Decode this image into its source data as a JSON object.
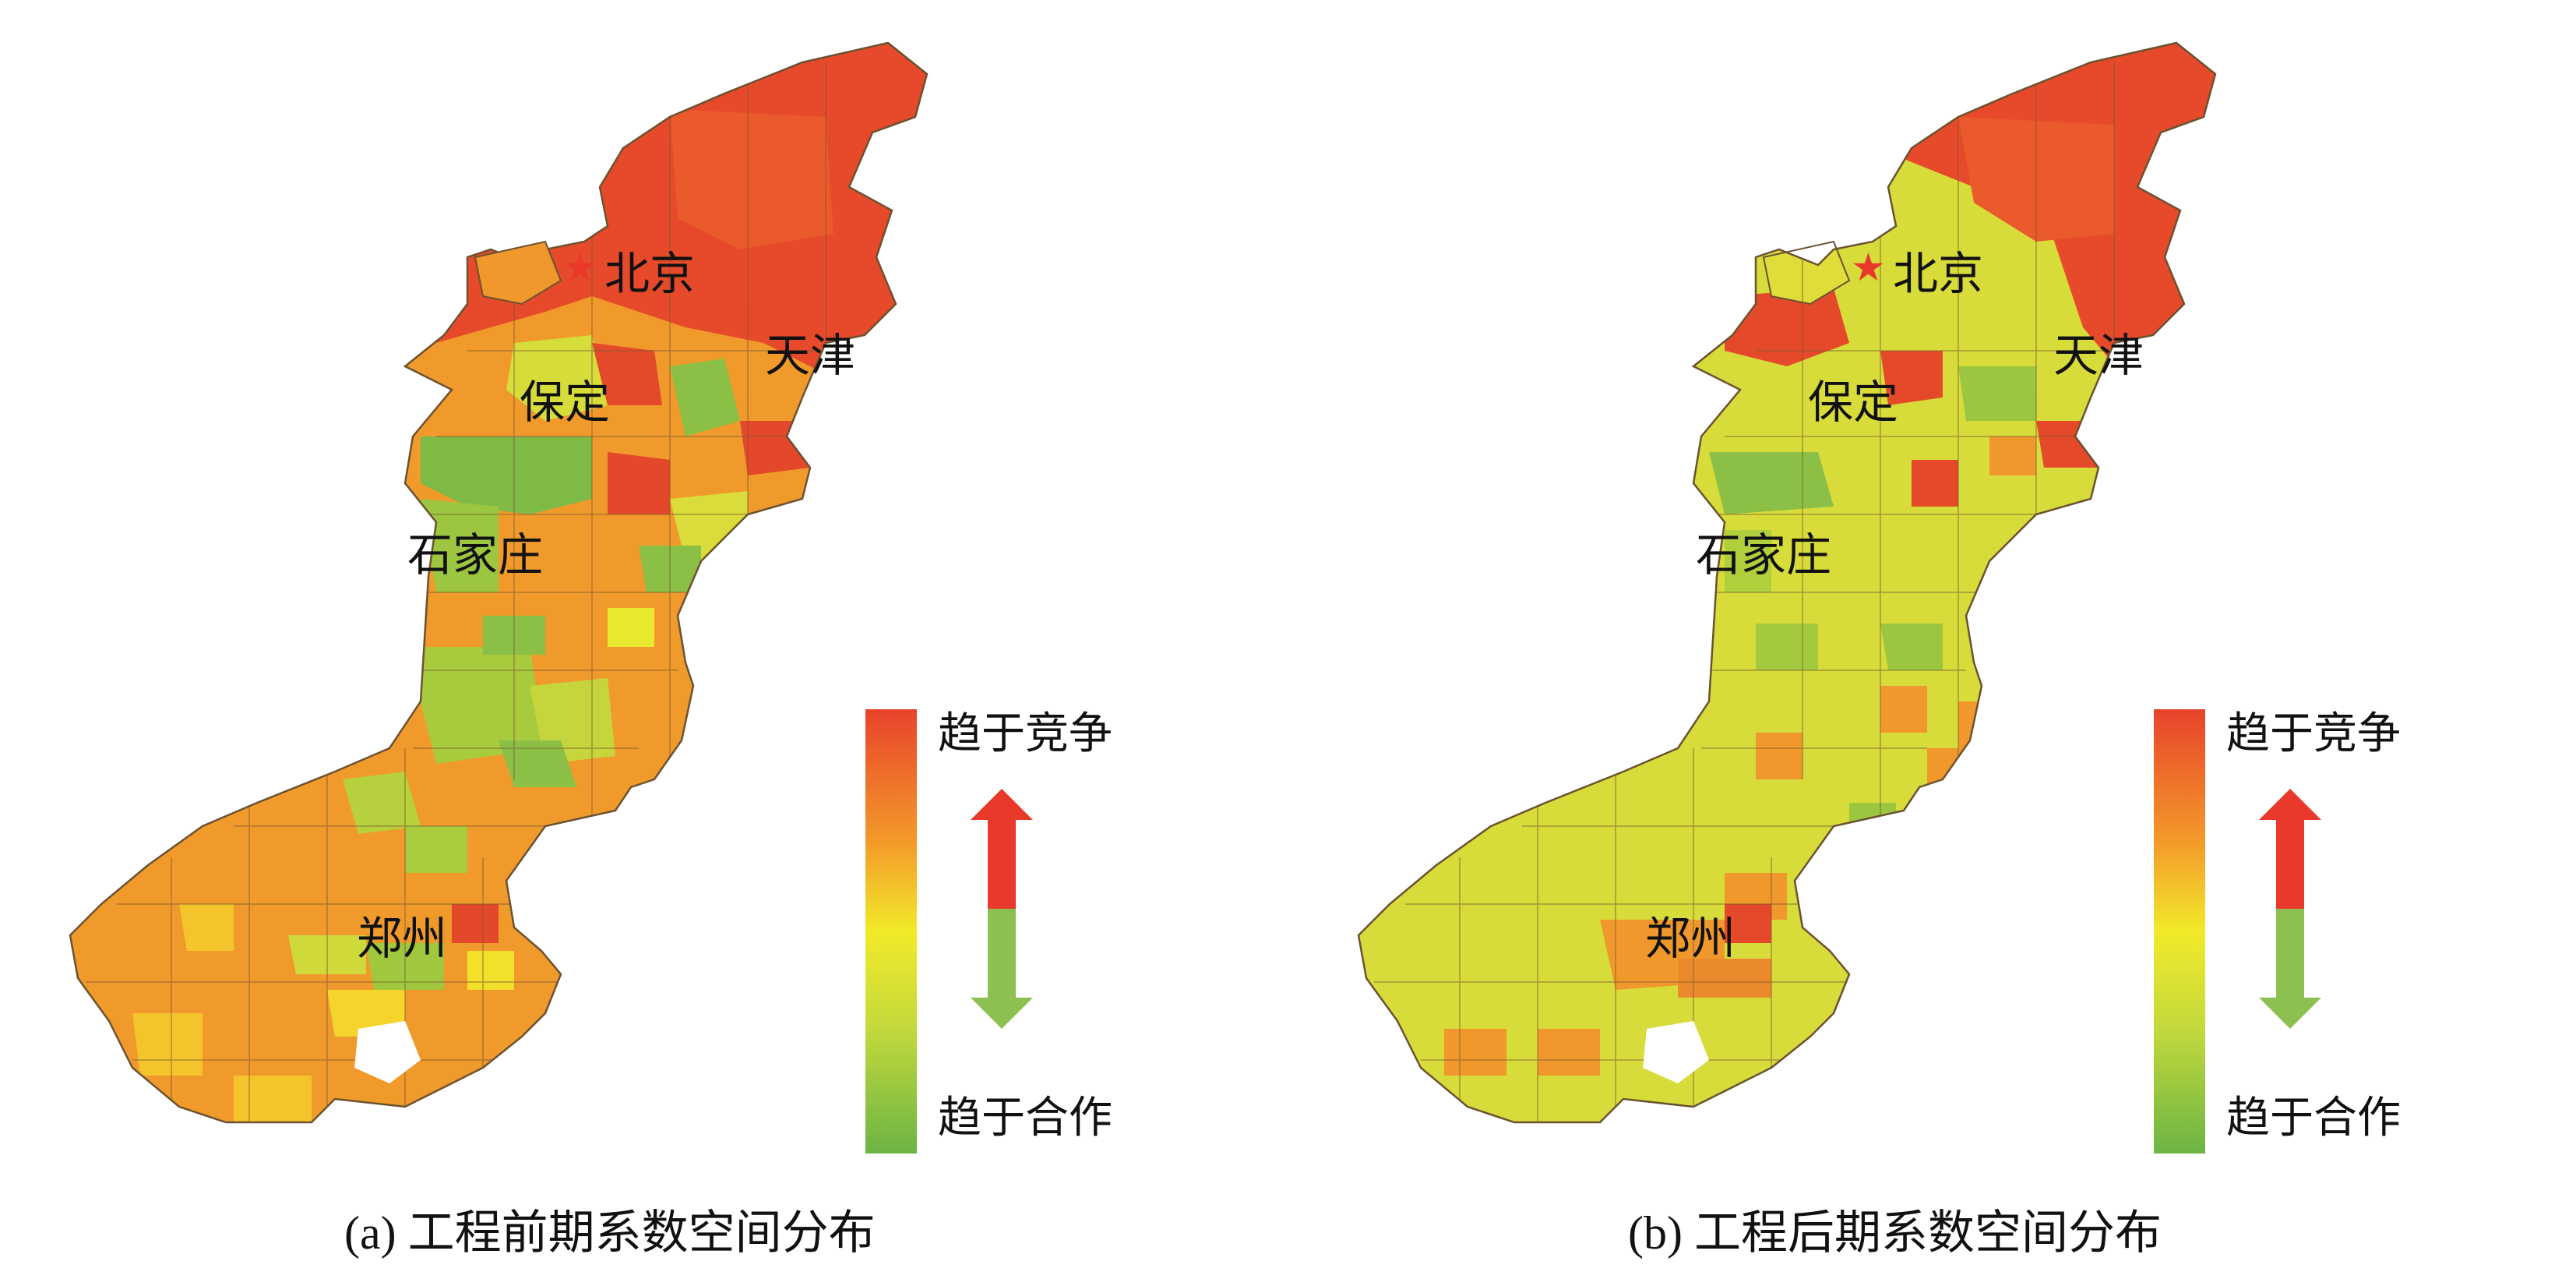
{
  "panels": [
    {
      "id": "a",
      "caption": "(a) 工程前期系数空间分布",
      "cities": {
        "beijing": "北京",
        "tianjin": "天津",
        "baoding": "保定",
        "shijiazhuang": "石家庄",
        "zhengzhou": "郑州"
      },
      "legend": {
        "top_label": "趋于竞争",
        "bottom_label": "趋于合作"
      }
    },
    {
      "id": "b",
      "caption": "(b) 工程后期系数空间分布",
      "cities": {
        "beijing": "北京",
        "tianjin": "天津",
        "baoding": "保定",
        "shijiazhuang": "石家庄",
        "zhengzhou": "郑州"
      },
      "legend": {
        "top_label": "趋于竞争",
        "bottom_label": "趋于合作"
      }
    }
  ],
  "colors": {
    "compete": "#e8432b",
    "mid": "#f2ea2a",
    "cooperate": "#78b845",
    "arrow_up": "#e8392b",
    "arrow_down": "#8cc152"
  }
}
